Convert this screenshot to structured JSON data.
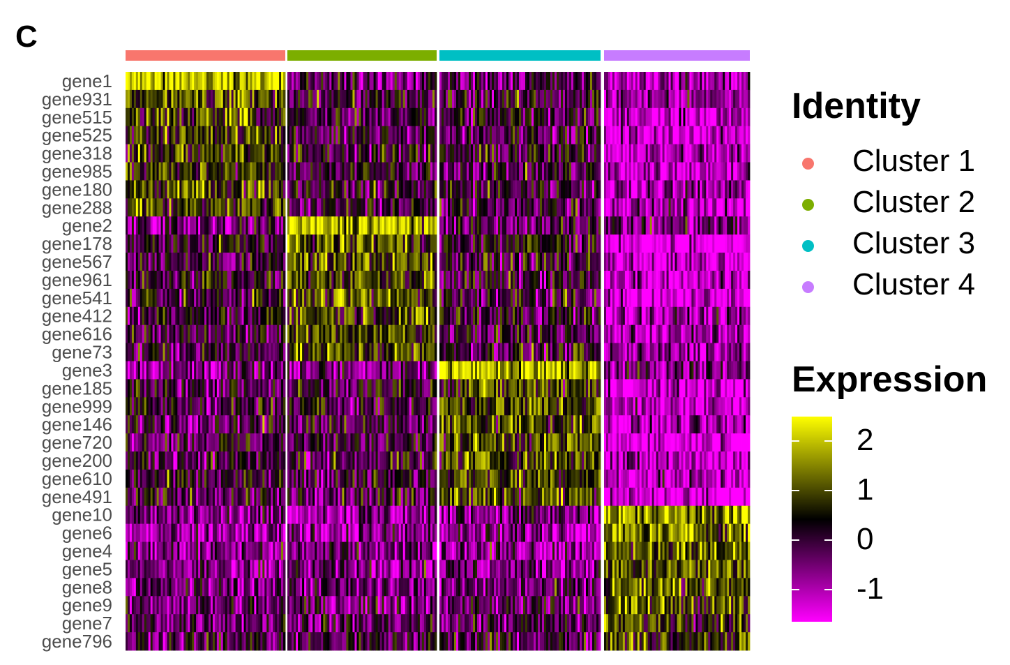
{
  "panel_label": "C",
  "chart_data": {
    "type": "heatmap",
    "title": "",
    "genes": [
      "gene1",
      "gene931",
      "gene515",
      "gene525",
      "gene318",
      "gene985",
      "gene180",
      "gene288",
      "gene2",
      "gene178",
      "gene567",
      "gene961",
      "gene541",
      "gene412",
      "gene616",
      "gene73",
      "gene3",
      "gene185",
      "gene999",
      "gene146",
      "gene720",
      "gene200",
      "gene610",
      "gene491",
      "gene10",
      "gene6",
      "gene4",
      "gene5",
      "gene8",
      "gene9",
      "gene7",
      "gene796"
    ],
    "clusters": [
      {
        "name": "Cluster 1",
        "color": "#F8766D",
        "cells": 77
      },
      {
        "name": "Cluster 2",
        "color": "#7CAE00",
        "cells": 71
      },
      {
        "name": "Cluster 3",
        "color": "#00BFC4",
        "cells": 77
      },
      {
        "name": "Cluster 4",
        "color": "#C77CFF",
        "cells": 70
      }
    ],
    "cluster_means": [
      [
        2.2,
        -0.3,
        -0.2,
        -0.9
      ],
      [
        0.9,
        0.1,
        0.1,
        -0.8
      ],
      [
        0.9,
        0.0,
        0.1,
        -1.2
      ],
      [
        0.9,
        0.0,
        0.0,
        -1.4
      ],
      [
        0.9,
        0.1,
        0.1,
        -1.1
      ],
      [
        0.9,
        0.1,
        0.0,
        -1.0
      ],
      [
        0.9,
        0.1,
        0.1,
        -0.9
      ],
      [
        0.9,
        0.0,
        0.0,
        -1.0
      ],
      [
        -0.3,
        1.9,
        -0.3,
        -0.5
      ],
      [
        0.3,
        1.1,
        0.4,
        -1.6
      ],
      [
        0.0,
        1.0,
        0.1,
        -1.2
      ],
      [
        0.0,
        1.0,
        0.0,
        -1.3
      ],
      [
        0.1,
        1.0,
        0.0,
        -1.4
      ],
      [
        0.1,
        1.0,
        0.1,
        -0.9
      ],
      [
        0.0,
        1.0,
        0.0,
        -1.0
      ],
      [
        0.0,
        0.9,
        0.1,
        -0.9
      ],
      [
        -0.6,
        -0.5,
        2.0,
        -0.6
      ],
      [
        0.0,
        0.1,
        1.0,
        -1.4
      ],
      [
        0.0,
        0.1,
        1.0,
        -1.1
      ],
      [
        0.0,
        0.0,
        1.0,
        -1.2
      ],
      [
        0.0,
        0.0,
        1.0,
        -1.4
      ],
      [
        0.0,
        0.0,
        1.0,
        -1.1
      ],
      [
        0.0,
        0.0,
        1.0,
        -1.1
      ],
      [
        0.0,
        0.1,
        1.0,
        -1.5
      ],
      [
        -0.7,
        -0.7,
        -0.5,
        1.6
      ],
      [
        -0.7,
        -0.7,
        -0.7,
        1.4
      ],
      [
        -0.6,
        -0.6,
        -0.6,
        1.2
      ],
      [
        -0.6,
        -0.6,
        -0.6,
        1.2
      ],
      [
        -0.5,
        -0.5,
        -0.5,
        1.2
      ],
      [
        -0.4,
        -0.4,
        -0.4,
        1.0
      ],
      [
        -0.2,
        -0.2,
        -0.2,
        0.9
      ],
      [
        -0.1,
        -0.1,
        0.0,
        0.9
      ]
    ],
    "noise_seed": 42,
    "color_scale": {
      "low": "#FF00FF",
      "mid": "#000000",
      "high": "#FFFF00",
      "range": [
        -1.65,
        2.5
      ],
      "mid_value": 0.42
    },
    "legend_identity_title": "Identity",
    "legend_expression_title": "Expression",
    "colorbar_ticks": [
      2,
      1,
      0,
      -1
    ]
  }
}
